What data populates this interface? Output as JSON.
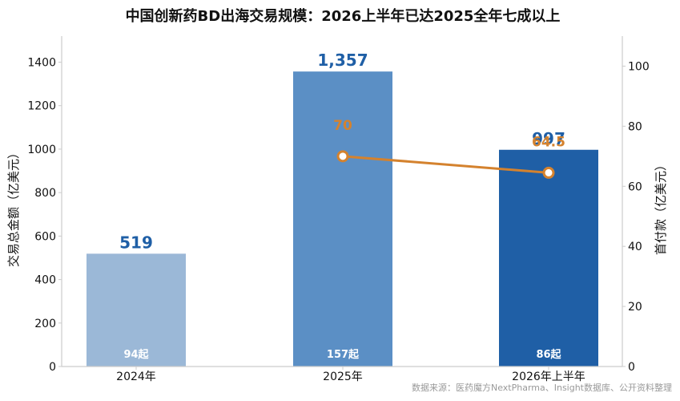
{
  "chart_data": {
    "type": "bar",
    "title": "中国创新药BD出海交易规模：2026上半年已达2025全年七成以上",
    "categories": [
      "2024年",
      "2025年",
      "2026年上半年"
    ],
    "series": [
      {
        "values": [
          519,
          1357,
          997
        ],
        "labels": [
          "519",
          "1,357",
          "997"
        ],
        "colors": [
          "#9BB8D7",
          "#5B8FC5",
          "#1F5FA6"
        ],
        "axis": "left",
        "type": "bar"
      },
      {
        "values": [
          null,
          70,
          64.5
        ],
        "labels": [
          "",
          "70",
          "64.5"
        ],
        "color": "#D4822E",
        "axis": "right",
        "type": "line"
      }
    ],
    "deal_counts": [
      "94起",
      "157起",
      "86起"
    ],
    "ylabel_left": "交易总金额（亿美元）",
    "ylabel_right": "首付款（亿美元）",
    "ylim_left": [
      0,
      1520
    ],
    "ylim_right": [
      0,
      110
    ],
    "yticks_left": [
      0,
      200,
      400,
      600,
      800,
      1000,
      1200,
      1400
    ],
    "yticks_right": [
      0,
      20,
      40,
      60,
      80,
      100
    ],
    "grid": false,
    "label_color": "#1F5FA6",
    "line_label_color": "#D4822E",
    "source": "数据来源：医药魔方NextPharma、Insight数据库、公开资料整理"
  }
}
